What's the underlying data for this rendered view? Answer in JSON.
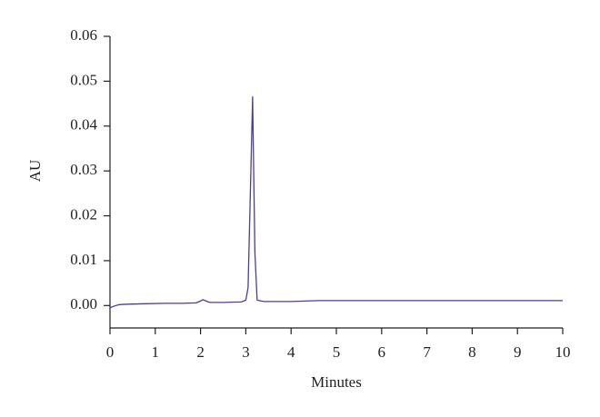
{
  "chart_data": {
    "type": "line",
    "x_label": "Minutes",
    "y_label": "AU",
    "x": [
      0,
      0.1,
      0.2,
      0.4,
      0.8,
      1.2,
      1.6,
      1.9,
      2.0,
      2.05,
      2.1,
      2.2,
      2.5,
      2.9,
      3.0,
      3.05,
      3.1,
      3.15,
      3.2,
      3.25,
      3.4,
      4.0,
      4.6,
      5.0,
      6.0,
      7.0,
      8.0,
      9.0,
      10.0
    ],
    "series": [
      {
        "color": "#4a3f96",
        "values": [
          -0.0005,
          -0.0001,
          0.0002,
          0.0003,
          0.0004,
          0.0005,
          0.0005,
          0.0006,
          0.001,
          0.0013,
          0.0011,
          0.0007,
          0.0007,
          0.0008,
          0.0012,
          0.004,
          0.025,
          0.0465,
          0.012,
          0.0012,
          0.0009,
          0.0009,
          0.0011,
          0.0011,
          0.0011,
          0.0011,
          0.0011,
          0.0011,
          0.0011
        ]
      }
    ],
    "xlim": [
      0,
      10
    ],
    "xticks": [
      0,
      1,
      2,
      3,
      4,
      5,
      6,
      7,
      8,
      9,
      10
    ],
    "ylim": [
      -0.005,
      0.06
    ],
    "yticks": [
      {
        "value": 0,
        "label": "0.00"
      },
      0.01,
      0.02,
      0.03,
      0.04,
      0.05,
      0.06
    ]
  }
}
